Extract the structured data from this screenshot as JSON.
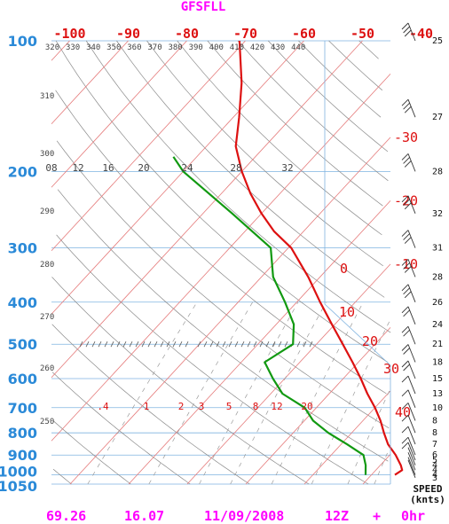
{
  "title": "GFSFLL",
  "footer": {
    "left": "69.26",
    "mid": "16.07",
    "date": "11/09/2008",
    "time": "12Z",
    "plus": "+",
    "fhr": "0hr"
  },
  "speed_label": [
    "SPEED",
    "(knts)"
  ],
  "colors": {
    "temperature": "#dd1111",
    "dewpoint": "#119911",
    "pressure_labels": "#2b8ad8",
    "isotherms": "#dd1111",
    "title": "#ff00ff"
  },
  "chart_data": {
    "type": "line",
    "pressure_levels": [
      100,
      200,
      300,
      400,
      500,
      600,
      700,
      800,
      900,
      1000,
      1050
    ],
    "temperature_axis_top": [
      -100,
      -90,
      -80,
      -70,
      -60,
      -50,
      -40
    ],
    "temperature_axis_right": [
      -30,
      -20,
      -10,
      0,
      10,
      20,
      30,
      40
    ],
    "dry_adiabat_labels_top": [
      320,
      330,
      340,
      350,
      360,
      370,
      380,
      390,
      400,
      410,
      420,
      430,
      440
    ],
    "dry_adiabat_labels_left": [
      310,
      300,
      290,
      280,
      270,
      260,
      250
    ],
    "mixing_ratio_labels_upper": [
      "08",
      "12",
      "16",
      "20",
      "24",
      "28",
      "32"
    ],
    "mixing_ratio_labels_lower": [
      ".4",
      "1",
      "2",
      "3",
      "5",
      "8",
      "12",
      "20"
    ],
    "series": [
      {
        "points": [
          {
            "p": 1000,
            "t": 24
          },
          {
            "p": 975,
            "t": 24.5
          },
          {
            "p": 950,
            "t": 23.5
          },
          {
            "p": 900,
            "t": 21
          },
          {
            "p": 850,
            "t": 18
          },
          {
            "p": 800,
            "t": 15.5
          },
          {
            "p": 750,
            "t": 13
          },
          {
            "p": 700,
            "t": 10
          },
          {
            "p": 650,
            "t": 6.5
          },
          {
            "p": 600,
            "t": 3
          },
          {
            "p": 550,
            "t": -1
          },
          {
            "p": 500,
            "t": -5.5
          },
          {
            "p": 450,
            "t": -10.5
          },
          {
            "p": 400,
            "t": -16
          },
          {
            "p": 350,
            "t": -22
          },
          {
            "p": 300,
            "t": -29.5
          },
          {
            "p": 275,
            "t": -35
          },
          {
            "p": 250,
            "t": -40
          },
          {
            "p": 225,
            "t": -45
          },
          {
            "p": 200,
            "t": -50
          },
          {
            "p": 175,
            "t": -55
          },
          {
            "p": 150,
            "t": -59
          },
          {
            "p": 125,
            "t": -64
          },
          {
            "p": 100,
            "t": -71
          }
        ]
      },
      {
        "points": [
          {
            "p": 1000,
            "t": 19
          },
          {
            "p": 950,
            "t": 17.5
          },
          {
            "p": 900,
            "t": 15.5
          },
          {
            "p": 850,
            "t": 11
          },
          {
            "p": 800,
            "t": 6
          },
          {
            "p": 750,
            "t": 1.5
          },
          {
            "p": 700,
            "t": -2
          },
          {
            "p": 650,
            "t": -8
          },
          {
            "p": 600,
            "t": -12
          },
          {
            "p": 550,
            "t": -16
          },
          {
            "p": 500,
            "t": -14
          },
          {
            "p": 450,
            "t": -17
          },
          {
            "p": 400,
            "t": -22
          },
          {
            "p": 350,
            "t": -28
          },
          {
            "p": 300,
            "t": -33
          },
          {
            "p": 250,
            "t": -45
          },
          {
            "p": 200,
            "t": -60
          },
          {
            "p": 185,
            "t": -64
          }
        ]
      }
    ],
    "wind_speed_labels": [
      {
        "p": 100,
        "label": "25"
      },
      {
        "p": 150,
        "label": "27"
      },
      {
        "p": 200,
        "label": "28"
      },
      {
        "p": 250,
        "label": "32"
      },
      {
        "p": 300,
        "label": "31"
      },
      {
        "p": 350,
        "label": "28"
      },
      {
        "p": 400,
        "label": "26"
      },
      {
        "p": 450,
        "label": "24"
      },
      {
        "p": 500,
        "label": "21"
      },
      {
        "p": 550,
        "label": "18"
      },
      {
        "p": 600,
        "label": "15"
      },
      {
        "p": 650,
        "label": "13"
      },
      {
        "p": 700,
        "label": "10"
      },
      {
        "p": 750,
        "label": "8"
      },
      {
        "p": 800,
        "label": "8"
      },
      {
        "p": 850,
        "label": "7"
      },
      {
        "p": 900,
        "label": "6"
      },
      {
        "p": 925,
        "label": "5"
      },
      {
        "p": 950,
        "label": "4"
      },
      {
        "p": 975,
        "label": "4"
      },
      {
        "p": 1000,
        "label": "4"
      },
      {
        "p": 1015,
        "label": "3"
      }
    ]
  }
}
